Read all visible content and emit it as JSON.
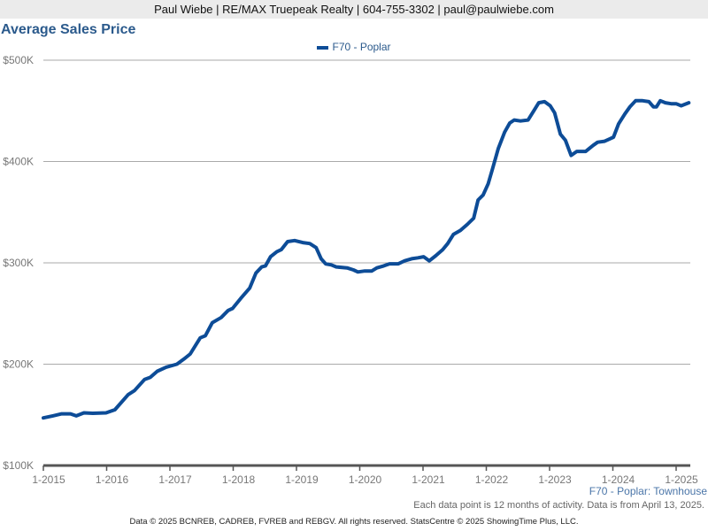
{
  "header": {
    "contact": "Paul Wiebe | RE/MAX Truepeak Realty | 604-755-3302 | paul@paulwiebe.com"
  },
  "footer": {
    "subtitle": "F70 - Poplar: Townhouse",
    "note": "Each data point is 12 months of activity. Data is from April 13, 2025.",
    "copyright": "Data © 2025 BCNREB, CADREB, FVREB and REBGV. All rights reserved. StatsCentre © 2025 ShowingTime Plus, LLC."
  },
  "colors": {
    "series": "#0d4c97",
    "title": "#2b5a8c"
  },
  "chart_data": {
    "type": "line",
    "title": "Average Sales Price",
    "xlabel": "",
    "ylabel": "",
    "xlim": [
      2015,
      2025.2
    ],
    "ylim": [
      100,
      500
    ],
    "y_ticks": [
      100,
      200,
      300,
      400,
      500
    ],
    "y_tick_labels": [
      "$100K",
      "$200K",
      "$300K",
      "$400K",
      "$500K"
    ],
    "x_ticks": [
      2015,
      2016,
      2017,
      2018,
      2019,
      2020,
      2021,
      2022,
      2023,
      2024,
      2025
    ],
    "x_tick_labels": [
      "1-2015",
      "1-2016",
      "1-2017",
      "1-2018",
      "1-2019",
      "1-2020",
      "1-2021",
      "1-2022",
      "1-2023",
      "1-2024",
      "1-2025"
    ],
    "grid": true,
    "legend_position": "top-center",
    "series": [
      {
        "name": "F70 - Poplar",
        "unit": "thousand dollars",
        "x": [
          2015.0,
          2015.15,
          2015.29,
          2015.43,
          2015.52,
          2015.64,
          2015.78,
          2015.99,
          2016.13,
          2016.34,
          2016.44,
          2016.6,
          2016.69,
          2016.8,
          2016.94,
          2017.11,
          2017.22,
          2017.32,
          2017.42,
          2017.48,
          2017.56,
          2017.67,
          2017.81,
          2017.92,
          2017.99,
          2018.12,
          2018.26,
          2018.36,
          2018.45,
          2018.51,
          2018.59,
          2018.69,
          2018.76,
          2018.86,
          2018.97,
          2019.1,
          2019.21,
          2019.31,
          2019.39,
          2019.46,
          2019.55,
          2019.63,
          2019.8,
          2019.9,
          2019.97,
          2020.08,
          2020.19,
          2020.27,
          2020.38,
          2020.47,
          2020.61,
          2020.71,
          2020.82,
          2020.92,
          2021.01,
          2021.1,
          2021.2,
          2021.31,
          2021.39,
          2021.48,
          2021.59,
          2021.7,
          2021.8,
          2021.87,
          2021.95,
          2022.03,
          2022.1,
          2022.19,
          2022.29,
          2022.37,
          2022.44,
          2022.54,
          2022.66,
          2022.75,
          2022.83,
          2022.92,
          2023.01,
          2023.08,
          2023.17,
          2023.25,
          2023.34,
          2023.43,
          2023.57,
          2023.69,
          2023.76,
          2023.87,
          2023.94,
          2024.01,
          2024.09,
          2024.19,
          2024.27,
          2024.36,
          2024.47,
          2024.57,
          2024.64,
          2024.69,
          2024.75,
          2024.83,
          2024.92,
          2025.0,
          2025.08,
          2025.2
        ],
        "values": [
          147,
          149,
          151,
          151,
          149,
          152,
          151.5,
          152,
          155,
          170,
          174,
          185,
          187,
          193,
          197,
          200,
          205,
          210,
          220,
          226,
          228,
          241,
          246,
          253,
          255,
          265,
          275,
          290,
          296,
          297,
          306,
          311,
          313,
          321,
          322,
          320,
          319,
          315,
          304,
          299,
          298,
          296,
          295,
          293,
          291,
          292,
          292,
          295,
          297,
          299,
          299,
          302,
          304,
          305,
          306,
          302,
          307,
          313,
          319,
          328,
          332,
          338,
          344,
          362,
          367,
          378,
          393,
          413,
          429,
          438,
          441,
          440,
          441,
          450,
          458,
          459,
          455,
          448,
          427,
          421,
          406,
          410,
          410,
          416,
          419,
          420,
          422,
          424,
          437,
          447,
          454,
          460,
          460,
          459,
          454,
          454,
          460,
          458,
          457,
          457,
          455,
          458
        ]
      }
    ]
  }
}
